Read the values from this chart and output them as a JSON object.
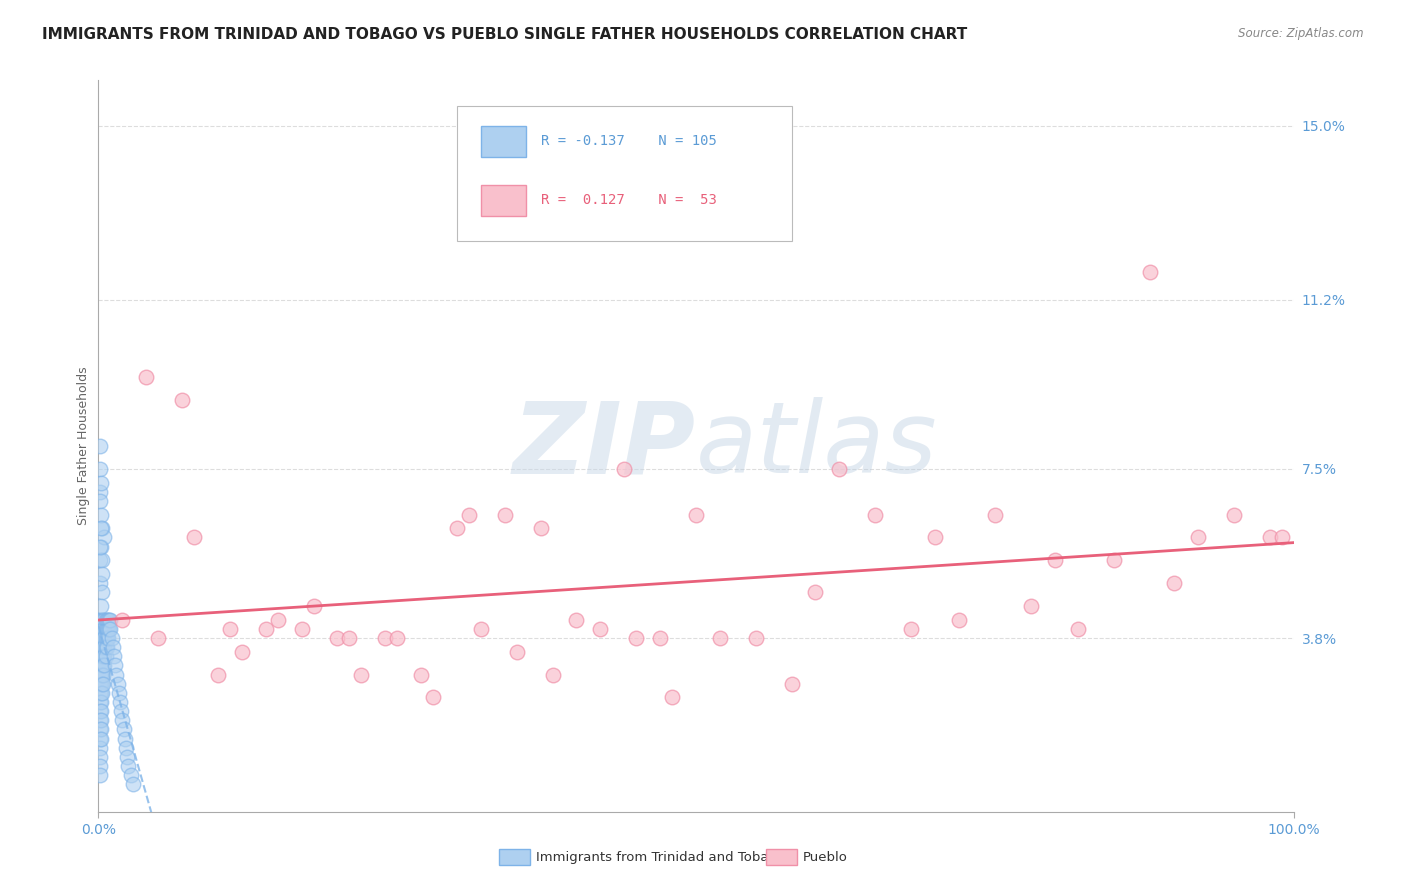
{
  "title": "IMMIGRANTS FROM TRINIDAD AND TOBAGO VS PUEBLO SINGLE FATHER HOUSEHOLDS CORRELATION CHART",
  "source": "Source: ZipAtlas.com",
  "ylabel": "Single Father Households",
  "xlim": [
    0.0,
    1.0
  ],
  "ylim": [
    0.0,
    0.16
  ],
  "ytick_vals": [
    0.038,
    0.075,
    0.112,
    0.15
  ],
  "ytick_labels": [
    "3.8%",
    "7.5%",
    "11.2%",
    "15.0%"
  ],
  "xtick_vals": [
    0.0,
    1.0
  ],
  "xtick_labels": [
    "0.0%",
    "100.0%"
  ],
  "blue_R": -0.137,
  "blue_N": 105,
  "pink_R": 0.127,
  "pink_N": 53,
  "blue_fill": "#AED0F0",
  "blue_edge": "#7EB3E8",
  "pink_fill": "#F9C0CC",
  "pink_edge": "#F090A8",
  "blue_line": "#7EB3E8",
  "pink_line": "#E8607A",
  "watermark_color": "#D0DFF0",
  "title_fontsize": 11,
  "label_fontsize": 9,
  "tick_fontsize": 10,
  "background_color": "#FFFFFF",
  "grid_color": "#DDDDDD",
  "blue_scatter_x": [
    0.001,
    0.001,
    0.001,
    0.001,
    0.001,
    0.001,
    0.001,
    0.001,
    0.001,
    0.001,
    0.001,
    0.001,
    0.001,
    0.001,
    0.001,
    0.001,
    0.001,
    0.001,
    0.001,
    0.001,
    0.002,
    0.002,
    0.002,
    0.002,
    0.002,
    0.002,
    0.002,
    0.002,
    0.002,
    0.002,
    0.002,
    0.002,
    0.002,
    0.002,
    0.002,
    0.003,
    0.003,
    0.003,
    0.003,
    0.003,
    0.003,
    0.003,
    0.003,
    0.003,
    0.003,
    0.004,
    0.004,
    0.004,
    0.004,
    0.004,
    0.004,
    0.004,
    0.004,
    0.005,
    0.005,
    0.005,
    0.005,
    0.005,
    0.005,
    0.005,
    0.006,
    0.006,
    0.006,
    0.006,
    0.006,
    0.007,
    0.007,
    0.007,
    0.007,
    0.008,
    0.008,
    0.008,
    0.009,
    0.009,
    0.01,
    0.01,
    0.011,
    0.012,
    0.013,
    0.014,
    0.015,
    0.016,
    0.017,
    0.018,
    0.019,
    0.02,
    0.021,
    0.022,
    0.023,
    0.024,
    0.025,
    0.027,
    0.029,
    0.001,
    0.001,
    0.001,
    0.002,
    0.002,
    0.003,
    0.003,
    0.001,
    0.002,
    0.001,
    0.002,
    0.003
  ],
  "blue_scatter_y": [
    0.042,
    0.04,
    0.038,
    0.036,
    0.034,
    0.032,
    0.03,
    0.028,
    0.026,
    0.024,
    0.022,
    0.02,
    0.018,
    0.016,
    0.014,
    0.012,
    0.01,
    0.008,
    0.05,
    0.055,
    0.042,
    0.04,
    0.038,
    0.036,
    0.034,
    0.032,
    0.03,
    0.028,
    0.026,
    0.024,
    0.022,
    0.02,
    0.018,
    0.016,
    0.058,
    0.042,
    0.04,
    0.038,
    0.036,
    0.034,
    0.032,
    0.03,
    0.028,
    0.026,
    0.062,
    0.042,
    0.04,
    0.038,
    0.036,
    0.034,
    0.032,
    0.03,
    0.028,
    0.042,
    0.04,
    0.038,
    0.036,
    0.034,
    0.032,
    0.06,
    0.042,
    0.04,
    0.038,
    0.036,
    0.034,
    0.042,
    0.04,
    0.038,
    0.036,
    0.042,
    0.04,
    0.038,
    0.042,
    0.04,
    0.042,
    0.04,
    0.038,
    0.036,
    0.034,
    0.032,
    0.03,
    0.028,
    0.026,
    0.024,
    0.022,
    0.02,
    0.018,
    0.016,
    0.014,
    0.012,
    0.01,
    0.008,
    0.006,
    0.07,
    0.075,
    0.068,
    0.065,
    0.072,
    0.048,
    0.055,
    0.058,
    0.045,
    0.08,
    0.062,
    0.052
  ],
  "pink_scatter_x": [
    0.02,
    0.04,
    0.05,
    0.07,
    0.08,
    0.1,
    0.11,
    0.12,
    0.14,
    0.15,
    0.17,
    0.18,
    0.2,
    0.21,
    0.22,
    0.24,
    0.25,
    0.27,
    0.28,
    0.3,
    0.31,
    0.32,
    0.34,
    0.35,
    0.37,
    0.38,
    0.4,
    0.42,
    0.44,
    0.45,
    0.47,
    0.48,
    0.5,
    0.52,
    0.55,
    0.58,
    0.6,
    0.62,
    0.65,
    0.68,
    0.7,
    0.72,
    0.75,
    0.78,
    0.8,
    0.82,
    0.85,
    0.88,
    0.9,
    0.92,
    0.95,
    0.98,
    0.99
  ],
  "pink_scatter_y": [
    0.042,
    0.095,
    0.038,
    0.09,
    0.06,
    0.03,
    0.04,
    0.035,
    0.04,
    0.042,
    0.04,
    0.045,
    0.038,
    0.038,
    0.03,
    0.038,
    0.038,
    0.03,
    0.025,
    0.062,
    0.065,
    0.04,
    0.065,
    0.035,
    0.062,
    0.03,
    0.042,
    0.04,
    0.075,
    0.038,
    0.038,
    0.025,
    0.065,
    0.038,
    0.038,
    0.028,
    0.048,
    0.075,
    0.065,
    0.04,
    0.06,
    0.042,
    0.065,
    0.045,
    0.055,
    0.04,
    0.055,
    0.118,
    0.05,
    0.06,
    0.065,
    0.06,
    0.06
  ]
}
